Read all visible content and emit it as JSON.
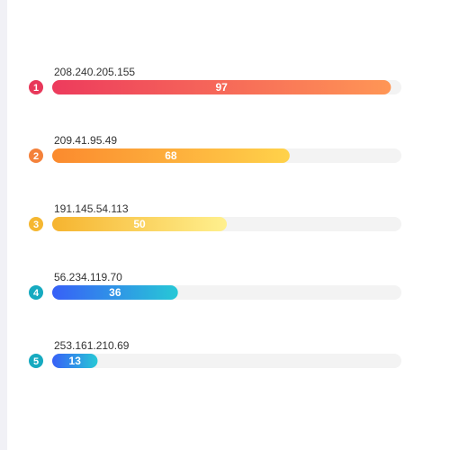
{
  "chart_data": {
    "type": "bar",
    "orientation": "horizontal",
    "xlim": [
      0,
      100
    ],
    "categories": [
      "208.240.205.155",
      "209.41.95.49",
      "191.145.54.113",
      "56.234.119.70",
      "253.161.210.69"
    ],
    "ranks": [
      "1",
      "2",
      "3",
      "4",
      "5"
    ],
    "values": [
      97,
      68,
      50,
      36,
      13
    ],
    "rank_colors": [
      "#e8385a",
      "#f4813a",
      "#f5b731",
      "#16aac0",
      "#16aac0"
    ],
    "bar_gradients": [
      [
        "#ed3b5d",
        "#ff9655"
      ],
      [
        "#fb8a2e",
        "#ffd24a"
      ],
      [
        "#f6b42f",
        "#fff08e"
      ],
      [
        "#3760f7",
        "#27c8d6"
      ],
      [
        "#3760f7",
        "#27c8d6"
      ]
    ],
    "track_color": "#f3f3f3"
  }
}
